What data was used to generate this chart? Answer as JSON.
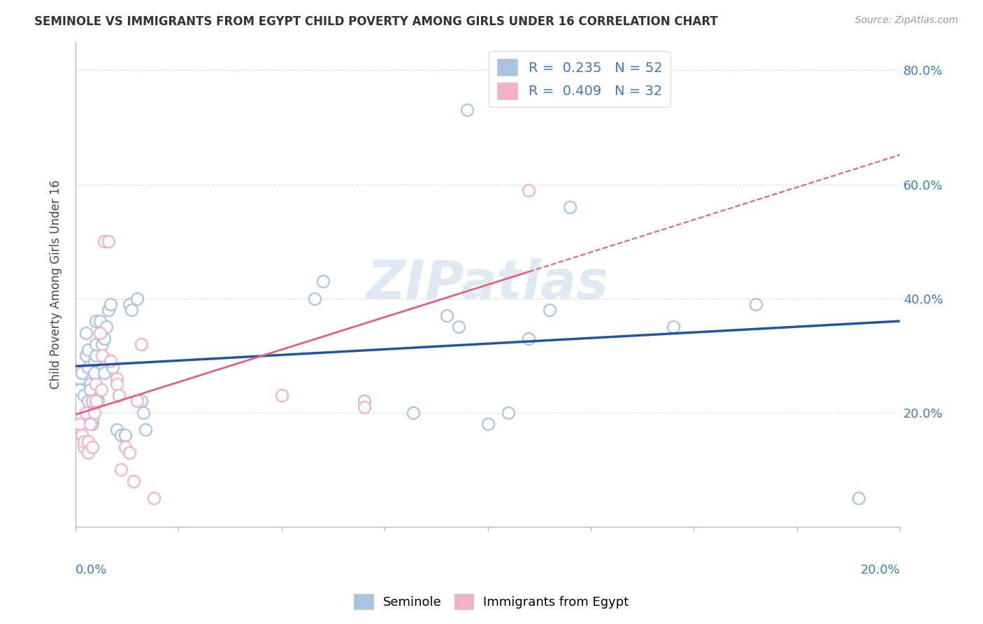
{
  "title": "SEMINOLE VS IMMIGRANTS FROM EGYPT CHILD POVERTY AMONG GIRLS UNDER 16 CORRELATION CHART",
  "source": "Source: ZipAtlas.com",
  "ylabel": "Child Poverty Among Girls Under 16",
  "legend_r1": "0.235",
  "legend_n1": "52",
  "legend_r2": "0.409",
  "legend_n2": "32",
  "watermark": "ZIPatlas",
  "seminole_color": "#a8c4e0",
  "egypt_color": "#f4b0c4",
  "seminole_line_color": "#2255a0",
  "egypt_line_color": "#e06080",
  "background_color": "#ffffff",
  "grid_color": "#dddddd",
  "seminole_x": [
    0.1,
    0.1,
    0.15,
    0.2,
    0.25,
    0.25,
    0.3,
    0.3,
    0.3,
    0.35,
    0.35,
    0.4,
    0.4,
    0.4,
    0.45,
    0.45,
    0.5,
    0.5,
    0.5,
    0.55,
    0.6,
    0.65,
    0.7,
    0.7,
    0.75,
    0.8,
    0.85,
    0.9,
    1.0,
    1.1,
    1.2,
    1.3,
    1.35,
    1.5,
    1.6,
    1.65,
    1.7,
    5.8,
    6.0,
    7.0,
    8.2,
    9.0,
    9.3,
    9.5,
    10.0,
    10.5,
    11.0,
    11.5,
    12.0,
    14.5,
    16.5,
    19.0
  ],
  "seminole_y": [
    26,
    24,
    27,
    23,
    30,
    34,
    22,
    28,
    31,
    25,
    24,
    22,
    18,
    19,
    27,
    29,
    30,
    32,
    36,
    22,
    36,
    32,
    27,
    33,
    35,
    38,
    39,
    28,
    17,
    16,
    16,
    39,
    38,
    40,
    22,
    20,
    17,
    40,
    43,
    22,
    20,
    37,
    35,
    73,
    18,
    20,
    33,
    38,
    56,
    35,
    39,
    5
  ],
  "egypt_x": [
    0.1,
    0.15,
    0.2,
    0.2,
    0.25,
    0.3,
    0.3,
    0.35,
    0.4,
    0.4,
    0.45,
    0.5,
    0.5,
    0.6,
    0.62,
    0.65,
    0.7,
    0.8,
    0.85,
    1.0,
    1.0,
    1.05,
    1.1,
    1.2,
    1.3,
    1.4,
    1.5,
    1.6,
    1.9,
    5.0,
    7.0,
    11.0
  ],
  "egypt_y": [
    18,
    16,
    14,
    15,
    20,
    15,
    13,
    18,
    14,
    22,
    20,
    22,
    25,
    34,
    24,
    30,
    50,
    50,
    29,
    26,
    25,
    23,
    10,
    14,
    13,
    8,
    22,
    32,
    5,
    23,
    21,
    59
  ],
  "xlim": [
    0.0,
    20.0
  ],
  "ylim": [
    0.0,
    85.0
  ],
  "yticks": [
    20,
    40,
    60,
    80
  ],
  "ytick_labels": [
    "20.0%",
    "40.0%",
    "60.0%",
    "80.0%"
  ]
}
